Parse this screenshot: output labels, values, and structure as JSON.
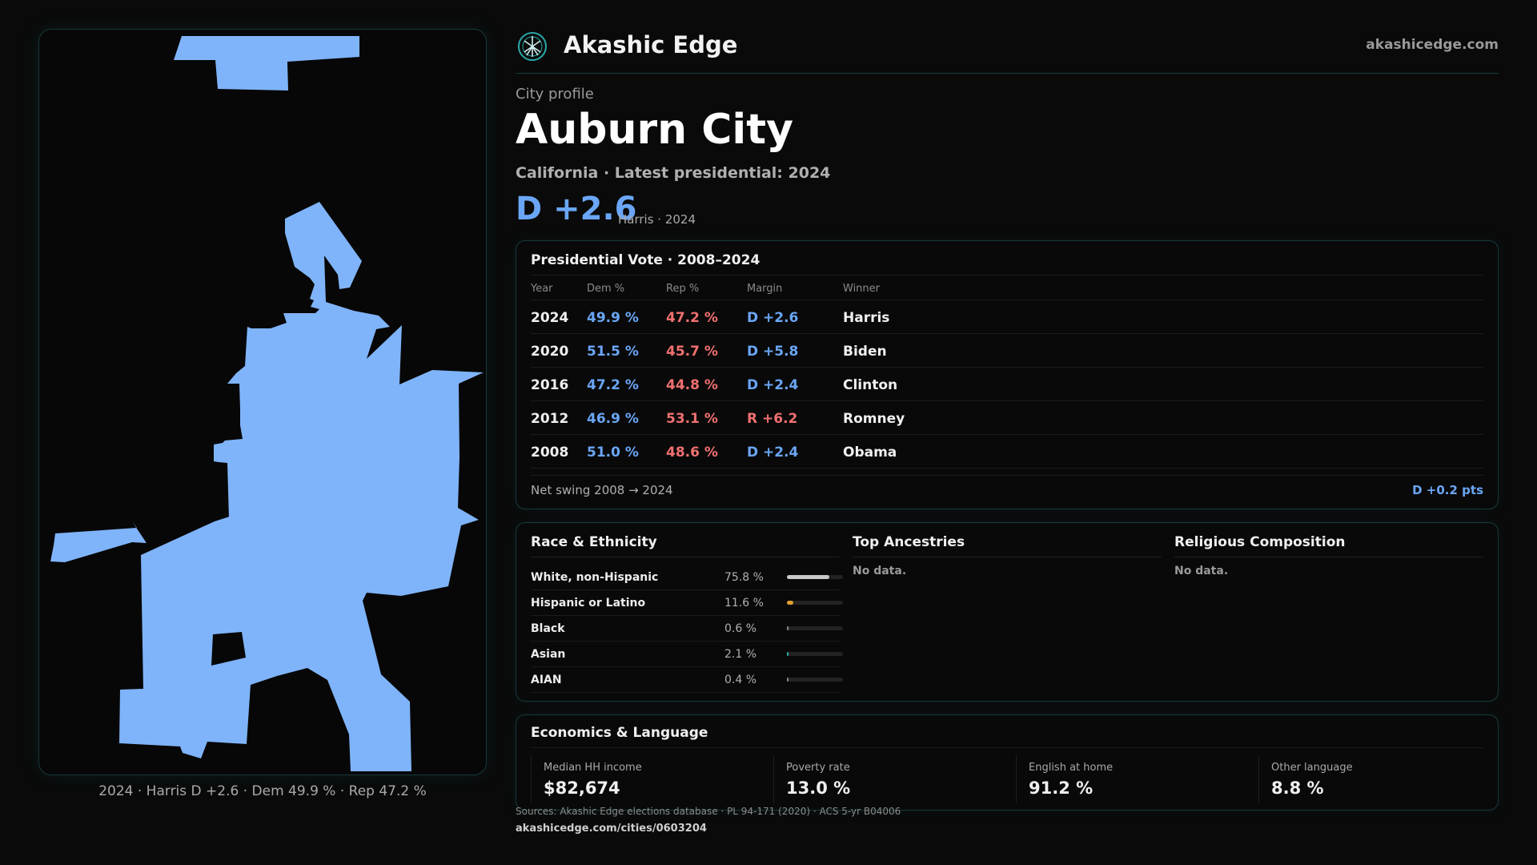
{
  "brand": {
    "name": "Akashic Edge",
    "url": "akashicedge.com",
    "accent": "#2aa8a8"
  },
  "page": {
    "kicker": "City profile",
    "city": "Auburn City",
    "subtitle": "California · Latest presidential: 2024",
    "headline_margin": "D +2.6",
    "headline_note": "Harris · 2024"
  },
  "map": {
    "fill_color": "#7fb4fa",
    "caption": "2024 · Harris D +2.6 · Dem 49.9 % · Rep 47.2 %"
  },
  "presidential": {
    "title": "Presidential Vote · 2008–2024",
    "columns": [
      "Year",
      "Dem %",
      "Rep %",
      "Margin",
      "Winner"
    ],
    "rows": [
      {
        "year": "2024",
        "dem": "49.9 %",
        "rep": "47.2 %",
        "margin": "D +2.6",
        "party": "D",
        "winner": "Harris"
      },
      {
        "year": "2020",
        "dem": "51.5 %",
        "rep": "45.7 %",
        "margin": "D +5.8",
        "party": "D",
        "winner": "Biden"
      },
      {
        "year": "2016",
        "dem": "47.2 %",
        "rep": "44.8 %",
        "margin": "D +2.4",
        "party": "D",
        "winner": "Clinton"
      },
      {
        "year": "2012",
        "dem": "46.9 %",
        "rep": "53.1 %",
        "margin": "R +6.2",
        "party": "R",
        "winner": "Romney"
      },
      {
        "year": "2008",
        "dem": "51.0 %",
        "rep": "48.6 %",
        "margin": "D +2.4",
        "party": "D",
        "winner": "Obama"
      }
    ],
    "swing_label": "Net swing 2008 → 2024",
    "swing_value": "D +0.2 pts",
    "colors": {
      "dem": "#6aa6f5",
      "rep": "#f07070"
    }
  },
  "race": {
    "title": "Race & Ethnicity",
    "rows": [
      {
        "label": "White, non-Hispanic",
        "pct": "75.8 %",
        "share": 0.758,
        "color": "#c8c8c8"
      },
      {
        "label": "Hispanic or Latino",
        "pct": "11.6 %",
        "share": 0.116,
        "color": "#e0a030"
      },
      {
        "label": "Black",
        "pct": "0.6 %",
        "share": 0.006,
        "color": "#888888"
      },
      {
        "label": "Asian",
        "pct": "2.1 %",
        "share": 0.021,
        "color": "#2aa8a8"
      },
      {
        "label": "AIAN",
        "pct": "0.4 %",
        "share": 0.004,
        "color": "#888888"
      }
    ]
  },
  "ancestries": {
    "title": "Top Ancestries",
    "empty": "No data."
  },
  "religion": {
    "title": "Religious Composition",
    "empty": "No data."
  },
  "economics": {
    "title": "Economics & Language",
    "stats": [
      {
        "label": "Median HH income",
        "value": "$82,674"
      },
      {
        "label": "Poverty rate",
        "value": "13.0 %"
      },
      {
        "label": "English at home",
        "value": "91.2 %"
      },
      {
        "label": "Other language",
        "value": "8.8 %"
      }
    ]
  },
  "footer": {
    "sources": "Sources: Akashic Edge elections database · PL 94-171 (2020) · ACS 5-yr B04006",
    "url": "akashicedge.com/cities/0603204"
  }
}
